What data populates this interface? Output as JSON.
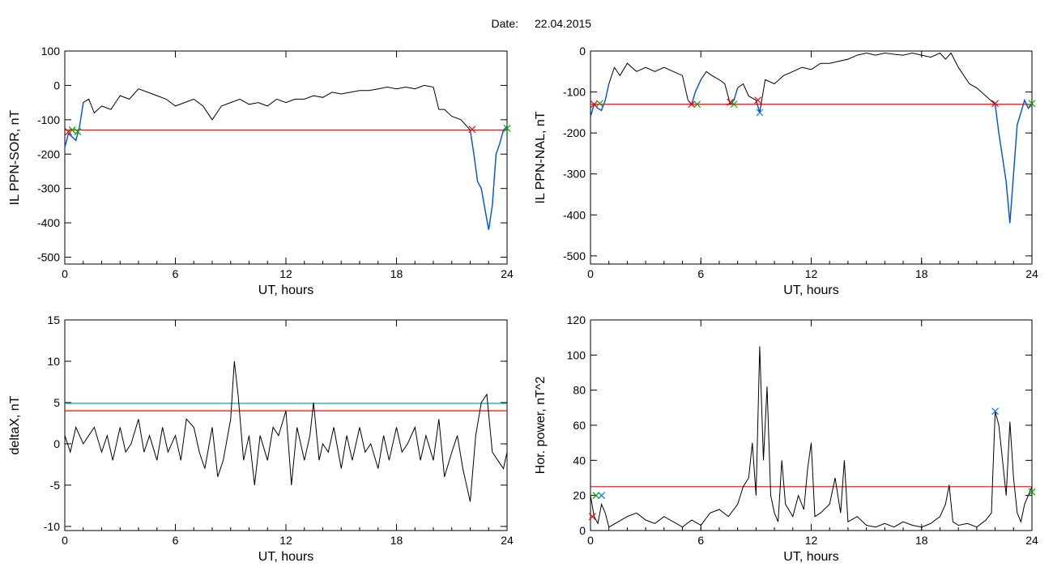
{
  "header": {
    "date_label": "Date:",
    "date_value": "22.04.2015"
  },
  "colors": {
    "trace": "#000000",
    "threshold": "#ff0000",
    "threshold2": "#00aaaa",
    "highlight": "#0055dd",
    "marker_red": "#ff0000",
    "marker_green": "#00aa00",
    "marker_blue": "#0077ff"
  },
  "chart_data": [
    {
      "id": "sor",
      "type": "line",
      "xlabel": "UT, hours",
      "ylabel": "IL PPN-SOR, nT",
      "xlim": [
        0,
        24
      ],
      "ylim": [
        -520,
        100
      ],
      "xticks": [
        "0",
        "6",
        "12",
        "18",
        "24"
      ],
      "yticks": [
        "100",
        "0",
        "-100",
        "-200",
        "-300",
        "-400",
        "-500"
      ],
      "series": [
        {
          "x": [
            0,
            0.2,
            0.4,
            0.6,
            0.8,
            1.0,
            1.3,
            1.6,
            2.0,
            2.5,
            3.0,
            3.5,
            4.0,
            4.5,
            5.0,
            5.5,
            6.0,
            6.5,
            7.0,
            7.5,
            8.0,
            8.5,
            9.0,
            9.5,
            10.0,
            10.5,
            11.0,
            11.5,
            12.0,
            12.5,
            13.0,
            13.5,
            14.0,
            14.5,
            15.0,
            15.5,
            16.0,
            16.5,
            17.0,
            17.5,
            18.0,
            18.5,
            19.0,
            19.5,
            20.0,
            20.3,
            20.6,
            21.0,
            21.5,
            22.0,
            22.2,
            22.4,
            22.6,
            22.8,
            23.0,
            23.2,
            23.4,
            23.6,
            23.8,
            24.0
          ],
          "y": [
            -180,
            -140,
            -150,
            -160,
            -120,
            -50,
            -40,
            -80,
            -60,
            -70,
            -30,
            -40,
            -10,
            -20,
            -30,
            -40,
            -60,
            -50,
            -40,
            -60,
            -100,
            -60,
            -50,
            -40,
            -55,
            -50,
            -60,
            -40,
            -50,
            -40,
            -40,
            -30,
            -35,
            -20,
            -25,
            -20,
            -15,
            -15,
            -10,
            -5,
            -10,
            -5,
            -10,
            0,
            -5,
            -70,
            -70,
            -90,
            -100,
            -130,
            -200,
            -280,
            -300,
            -360,
            -420,
            -350,
            -200,
            -170,
            -130,
            -120
          ]
        }
      ],
      "highlights": [
        {
          "x0": 0,
          "x1": 1.0
        },
        {
          "x0": 22.0,
          "x1": 24.0
        }
      ],
      "thresholds": [
        {
          "value": -130,
          "color": "threshold"
        }
      ],
      "markers": [
        {
          "x": 0.2,
          "y": -135,
          "color": "marker_red"
        },
        {
          "x": 0.4,
          "y": -130,
          "color": "marker_green"
        },
        {
          "x": 0.7,
          "y": -135,
          "color": "marker_green"
        },
        {
          "x": 22.1,
          "y": -128,
          "color": "marker_red"
        },
        {
          "x": 24,
          "y": -125,
          "color": "marker_green"
        }
      ]
    },
    {
      "id": "nal",
      "type": "line",
      "xlabel": "UT, hours",
      "ylabel": "IL PPN-NAL, nT",
      "xlim": [
        0,
        24
      ],
      "ylim": [
        -520,
        0
      ],
      "xticks": [
        "0",
        "6",
        "12",
        "18",
        "24"
      ],
      "yticks": [
        "0",
        "-100",
        "-200",
        "-300",
        "-400",
        "-500"
      ],
      "series": [
        {
          "x": [
            0,
            0.2,
            0.4,
            0.6,
            0.8,
            1.0,
            1.3,
            1.6,
            2.0,
            2.5,
            3.0,
            3.5,
            4.0,
            4.5,
            5.0,
            5.3,
            5.5,
            5.7,
            6.0,
            6.3,
            6.6,
            7.0,
            7.3,
            7.6,
            7.8,
            8.0,
            8.3,
            8.6,
            9.0,
            9.2,
            9.5,
            10.0,
            10.5,
            11.0,
            11.5,
            12.0,
            12.5,
            13.0,
            13.5,
            14.0,
            14.5,
            15.0,
            15.5,
            16.0,
            16.5,
            17.0,
            17.5,
            18.0,
            18.5,
            19.0,
            19.3,
            19.6,
            20.0,
            20.3,
            20.6,
            21.0,
            21.5,
            22.0,
            22.2,
            22.4,
            22.6,
            22.8,
            23.0,
            23.2,
            23.4,
            23.6,
            23.8,
            24.0
          ],
          "y": [
            -160,
            -130,
            -140,
            -145,
            -120,
            -80,
            -40,
            -60,
            -30,
            -50,
            -40,
            -50,
            -40,
            -50,
            -60,
            -120,
            -130,
            -100,
            -70,
            -50,
            -60,
            -70,
            -80,
            -130,
            -120,
            -90,
            -80,
            -110,
            -120,
            -150,
            -70,
            -80,
            -60,
            -50,
            -40,
            -45,
            -30,
            -30,
            -25,
            -20,
            -10,
            -5,
            -10,
            -5,
            -8,
            -10,
            -5,
            -10,
            -15,
            -5,
            -20,
            -5,
            -40,
            -60,
            -80,
            -90,
            -110,
            -130,
            -200,
            -260,
            -320,
            -420,
            -300,
            -180,
            -150,
            -120,
            -140,
            -130
          ]
        }
      ],
      "highlights": [
        {
          "x0": 0,
          "x1": 1.0
        },
        {
          "x0": 5.3,
          "x1": 6.0
        },
        {
          "x0": 7.5,
          "x1": 8.0
        },
        {
          "x0": 9.0,
          "x1": 9.3
        },
        {
          "x0": 22.0,
          "x1": 24.0
        }
      ],
      "thresholds": [
        {
          "value": -130,
          "color": "threshold"
        }
      ],
      "markers": [
        {
          "x": 0.2,
          "y": -130,
          "color": "marker_red"
        },
        {
          "x": 0.5,
          "y": -128,
          "color": "marker_green"
        },
        {
          "x": 5.5,
          "y": -130,
          "color": "marker_red"
        },
        {
          "x": 5.8,
          "y": -130,
          "color": "marker_green"
        },
        {
          "x": 7.6,
          "y": -125,
          "color": "marker_red"
        },
        {
          "x": 7.8,
          "y": -130,
          "color": "marker_green"
        },
        {
          "x": 9.1,
          "y": -120,
          "color": "marker_red"
        },
        {
          "x": 9.2,
          "y": -150,
          "color": "marker_blue"
        },
        {
          "x": 22.0,
          "y": -128,
          "color": "marker_red"
        },
        {
          "x": 24,
          "y": -128,
          "color": "marker_green"
        }
      ]
    },
    {
      "id": "deltax",
      "type": "line",
      "xlabel": "UT, hours",
      "ylabel": "deltaX, nT",
      "xlim": [
        0,
        24
      ],
      "ylim": [
        -10.5,
        15
      ],
      "xticks": [
        "0",
        "6",
        "12",
        "18",
        "24"
      ],
      "yticks": [
        "15",
        "10",
        "5",
        "0",
        "-5",
        "-10"
      ],
      "series": [
        {
          "x": [
            0,
            0.3,
            0.6,
            1.0,
            1.3,
            1.6,
            2.0,
            2.3,
            2.6,
            3.0,
            3.3,
            3.6,
            4.0,
            4.3,
            4.6,
            5.0,
            5.3,
            5.6,
            6.0,
            6.3,
            6.6,
            7.0,
            7.3,
            7.6,
            8.0,
            8.3,
            8.6,
            9.0,
            9.2,
            9.4,
            9.7,
            10.0,
            10.3,
            10.6,
            11.0,
            11.3,
            11.6,
            12.0,
            12.3,
            12.6,
            13.0,
            13.3,
            13.5,
            13.8,
            14.0,
            14.3,
            14.6,
            15.0,
            15.3,
            15.6,
            16.0,
            16.3,
            16.6,
            17.0,
            17.3,
            17.6,
            18.0,
            18.3,
            18.6,
            19.0,
            19.3,
            19.6,
            20.0,
            20.3,
            20.6,
            21.0,
            21.3,
            21.6,
            22.0,
            22.3,
            22.6,
            22.9,
            23.2,
            23.5,
            23.8,
            24.0
          ],
          "y": [
            1,
            -1,
            2,
            0,
            1,
            2,
            -1,
            1,
            -2,
            2,
            -1,
            0,
            3,
            -1,
            1,
            -2,
            2,
            -1,
            1,
            -2,
            3,
            2,
            -1,
            -3,
            2,
            -4,
            -2,
            3,
            10,
            6,
            -2,
            1,
            -5,
            1,
            -2,
            2,
            1,
            4,
            -5,
            2,
            -2,
            1,
            5,
            -2,
            0,
            -1,
            2,
            -3,
            1,
            -2,
            2,
            -1,
            0,
            -3,
            1,
            -2,
            2,
            -1,
            0,
            2,
            -2,
            1,
            -2,
            3,
            -4,
            -1,
            1,
            -3,
            -7,
            1,
            5,
            6,
            -1,
            -2,
            -3,
            -1
          ]
        }
      ],
      "thresholds": [
        {
          "value": 4.9,
          "color": "threshold2"
        },
        {
          "value": 4.0,
          "color": "threshold"
        }
      ]
    },
    {
      "id": "power",
      "type": "line",
      "xlabel": "UT, hours",
      "ylabel": "Hor. power, nT^2",
      "xlim": [
        0,
        24
      ],
      "ylim": [
        0,
        120
      ],
      "xticks": [
        "0",
        "6",
        "12",
        "18",
        "24"
      ],
      "yticks": [
        "120",
        "100",
        "80",
        "60",
        "40",
        "20",
        "0"
      ],
      "series": [
        {
          "x": [
            0,
            0.2,
            0.4,
            0.6,
            0.8,
            1.0,
            1.5,
            2.0,
            2.5,
            3.0,
            3.5,
            4.0,
            4.5,
            5.0,
            5.5,
            6.0,
            6.5,
            7.0,
            7.5,
            8.0,
            8.3,
            8.6,
            8.8,
            9.0,
            9.2,
            9.4,
            9.6,
            9.8,
            10.0,
            10.2,
            10.4,
            10.6,
            11.0,
            11.3,
            11.6,
            11.8,
            12.0,
            12.2,
            12.5,
            13.0,
            13.3,
            13.6,
            13.8,
            14.0,
            14.5,
            15.0,
            15.5,
            16.0,
            16.5,
            17.0,
            17.5,
            18.0,
            18.5,
            19.0,
            19.3,
            19.5,
            19.7,
            20.0,
            20.5,
            21.0,
            21.5,
            21.8,
            22.0,
            22.2,
            22.4,
            22.6,
            22.8,
            23.0,
            23.2,
            23.4,
            23.6,
            23.8,
            24.0
          ],
          "y": [
            20,
            8,
            4,
            15,
            10,
            2,
            5,
            8,
            10,
            6,
            4,
            8,
            5,
            2,
            6,
            3,
            10,
            12,
            8,
            15,
            25,
            30,
            50,
            20,
            105,
            40,
            82,
            20,
            10,
            5,
            40,
            15,
            8,
            20,
            12,
            35,
            50,
            8,
            10,
            15,
            30,
            10,
            40,
            5,
            8,
            3,
            2,
            4,
            2,
            5,
            3,
            2,
            4,
            8,
            15,
            26,
            5,
            3,
            4,
            2,
            6,
            10,
            68,
            60,
            40,
            20,
            62,
            30,
            10,
            5,
            15,
            20,
            25
          ]
        }
      ],
      "thresholds": [
        {
          "value": 25,
          "color": "threshold"
        }
      ],
      "markers": [
        {
          "x": 0.1,
          "y": 8,
          "color": "marker_red"
        },
        {
          "x": 0.3,
          "y": 20,
          "color": "marker_green"
        },
        {
          "x": 0.6,
          "y": 20,
          "color": "marker_blue"
        },
        {
          "x": 22.0,
          "y": 68,
          "color": "marker_blue"
        },
        {
          "x": 24,
          "y": 22,
          "color": "marker_green"
        }
      ]
    }
  ]
}
